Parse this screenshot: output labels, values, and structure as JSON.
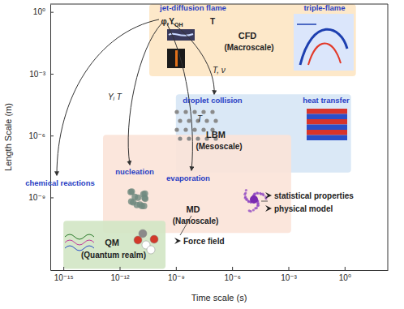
{
  "chart_data": {
    "type": "region",
    "xlabel": "Time scale (s)",
    "ylabel": "Length Scale (m)",
    "log": true,
    "xlim": [
      2e-16,
      200
    ],
    "ylim": [
      3e-13,
      2.4
    ],
    "xticks": [
      {
        "value": 1e-15,
        "label": "10⁻¹⁵"
      },
      {
        "value": 1e-12,
        "label": "10⁻¹²"
      },
      {
        "value": 1e-09,
        "label": "10⁻⁹"
      },
      {
        "value": 1e-06,
        "label": "10⁻⁶"
      },
      {
        "value": 0.001,
        "label": "10⁻³"
      },
      {
        "value": 1,
        "label": "10⁰"
      }
    ],
    "yticks": [
      {
        "value": 1e-09,
        "label": "10⁻⁹"
      },
      {
        "value": 1e-06,
        "label": "10⁻⁶"
      },
      {
        "value": 0.001,
        "label": "10⁻³"
      },
      {
        "value": 1,
        "label": "10⁰"
      }
    ],
    "regions": [
      {
        "name": "CFD",
        "color": "#fde5c3",
        "x": [
          3.8e-11,
          4
        ],
        "y": [
          0.00076,
          2.4
        ]
      },
      {
        "name": "LBM",
        "color": "#d6e5f5",
        "x": [
          1e-09,
          2.2
        ],
        "y": [
          1.6e-08,
          0.0001
        ]
      },
      {
        "name": "MD",
        "color": "#fbe3d8",
        "x": [
          1.3e-13,
          0.0014
        ],
        "y": [
          1.9e-11,
          1.1e-06
        ]
      },
      {
        "name": "QM",
        "color": "#d1e6c4",
        "x": [
          1e-15,
          2.8e-10
        ],
        "y": [
          3.4e-13,
          7.4e-11
        ]
      }
    ],
    "annotations": [
      {
        "text": "jet-diffusion flame",
        "color": "#2a3fc4"
      },
      {
        "text": "triple-flame",
        "color": "#2a3fc4"
      },
      {
        "text": "φ,Y",
        "sub": "OH",
        "color": "#222222"
      },
      {
        "text": "T",
        "color": "#222222"
      },
      {
        "text": "CFD",
        "color": "#222222"
      },
      {
        "text": "(Macroscale)",
        "color": "#222222"
      },
      {
        "text": "droplet collision",
        "color": "#2a3fc4"
      },
      {
        "text": "heat transfer",
        "color": "#2a3fc4"
      },
      {
        "text": "LBM",
        "color": "#222222"
      },
      {
        "text": "(Mesoscale)",
        "color": "#222222"
      },
      {
        "text": "evaporation",
        "color": "#2a3fc4"
      },
      {
        "text": "nucleation",
        "color": "#2a3fc4"
      },
      {
        "text": "MD",
        "color": "#222222"
      },
      {
        "text": "(Nanoscale)",
        "color": "#222222"
      },
      {
        "text": "chemical reactions",
        "color": "#2a3fc4"
      },
      {
        "text": "QM",
        "color": "#222222"
      },
      {
        "text": "(Quantum realm)",
        "color": "#222222"
      }
    ],
    "arrow_labels": [
      "Yᵢ  T",
      "T",
      "T, ν"
    ],
    "bullets": [
      "statistical properties",
      "physical model",
      "Force field"
    ]
  }
}
